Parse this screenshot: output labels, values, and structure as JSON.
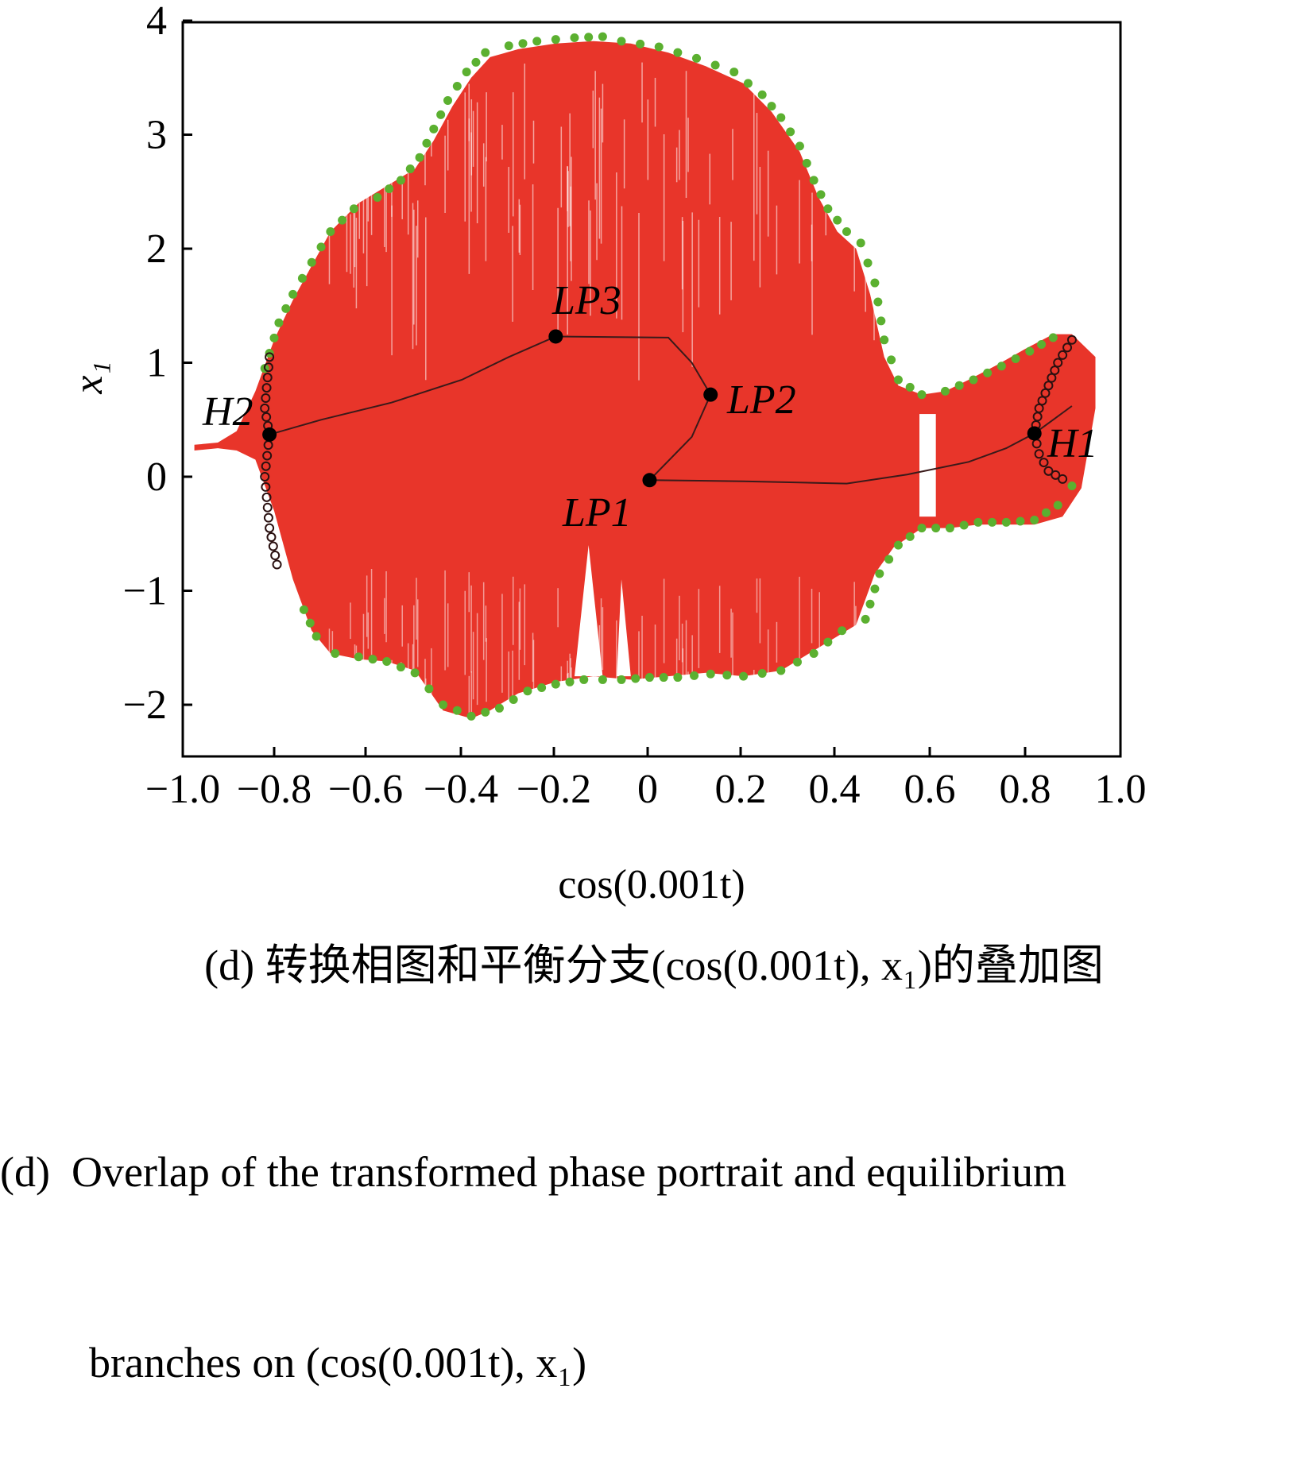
{
  "chart_data": {
    "type": "scatter",
    "xlabel": "cos(0.001t)",
    "ylabel": "x₁",
    "xlim": [
      -1.0,
      1.0
    ],
    "ylim": [
      -2.5,
      4.0
    ],
    "x_ticks": [
      "−1.0",
      "−0.8",
      "−0.6",
      "−0.4",
      "−0.2",
      "0",
      "0.2",
      "0.4",
      "0.6",
      "0.8",
      "1.0"
    ],
    "x_tick_values": [
      -1.0,
      -0.8,
      -0.6,
      -0.4,
      -0.2,
      0,
      0.2,
      0.4,
      0.6,
      0.8,
      1.0
    ],
    "y_ticks": [
      "−2",
      "−1",
      "0",
      "1",
      "2",
      "3",
      "4"
    ],
    "y_tick_values": [
      -2,
      -1,
      0,
      1,
      2,
      3,
      4
    ],
    "colors": {
      "phase_portrait": "#e8352a",
      "envelope": "#5bb030",
      "equilibrium_branch": "#3a1a1a",
      "points": "#000000",
      "hopf_circles": "#2a1010"
    },
    "phase_portrait_upper": [
      [
        -0.97,
        0.28
      ],
      [
        -0.92,
        0.3
      ],
      [
        -0.88,
        0.4
      ],
      [
        -0.84,
        0.75
      ],
      [
        -0.8,
        1.2
      ],
      [
        -0.76,
        1.55
      ],
      [
        -0.72,
        1.85
      ],
      [
        -0.68,
        2.15
      ],
      [
        -0.62,
        2.4
      ],
      [
        -0.56,
        2.55
      ],
      [
        -0.5,
        2.7
      ],
      [
        -0.46,
        2.95
      ],
      [
        -0.42,
        3.25
      ],
      [
        -0.38,
        3.5
      ],
      [
        -0.34,
        3.68
      ],
      [
        -0.28,
        3.75
      ],
      [
        -0.2,
        3.8
      ],
      [
        -0.12,
        3.82
      ],
      [
        -0.04,
        3.8
      ],
      [
        0.04,
        3.72
      ],
      [
        0.12,
        3.6
      ],
      [
        0.2,
        3.45
      ],
      [
        0.26,
        3.2
      ],
      [
        0.32,
        2.85
      ],
      [
        0.36,
        2.45
      ],
      [
        0.4,
        2.15
      ],
      [
        0.44,
        2.0
      ],
      [
        0.47,
        1.6
      ],
      [
        0.5,
        1.05
      ],
      [
        0.53,
        0.8
      ],
      [
        0.58,
        0.72
      ],
      [
        0.63,
        0.75
      ],
      [
        0.68,
        0.85
      ],
      [
        0.74,
        0.98
      ],
      [
        0.8,
        1.12
      ],
      [
        0.86,
        1.25
      ],
      [
        0.9,
        1.25
      ],
      [
        0.95,
        1.05
      ]
    ],
    "phase_portrait_lower": [
      [
        0.95,
        0.6
      ],
      [
        0.92,
        -0.1
      ],
      [
        0.88,
        -0.35
      ],
      [
        0.82,
        -0.42
      ],
      [
        0.76,
        -0.42
      ],
      [
        0.7,
        -0.42
      ],
      [
        0.64,
        -0.45
      ],
      [
        0.58,
        -0.45
      ],
      [
        0.52,
        -0.62
      ],
      [
        0.48,
        -0.85
      ],
      [
        0.44,
        -1.3
      ],
      [
        0.4,
        -1.4
      ],
      [
        0.34,
        -1.55
      ],
      [
        0.28,
        -1.7
      ],
      [
        0.2,
        -1.75
      ],
      [
        0.12,
        -1.72
      ],
      [
        0.04,
        -1.75
      ],
      [
        -0.04,
        -1.78
      ],
      [
        -0.12,
        -1.75
      ],
      [
        -0.2,
        -1.8
      ],
      [
        -0.28,
        -1.9
      ],
      [
        -0.34,
        -2.05
      ],
      [
        -0.38,
        -2.12
      ],
      [
        -0.44,
        -2.05
      ],
      [
        -0.5,
        -1.7
      ],
      [
        -0.56,
        -1.62
      ],
      [
        -0.62,
        -1.6
      ],
      [
        -0.68,
        -1.55
      ],
      [
        -0.72,
        -1.35
      ],
      [
        -0.76,
        -0.9
      ],
      [
        -0.8,
        -0.3
      ],
      [
        -0.84,
        0.15
      ],
      [
        -0.88,
        0.23
      ],
      [
        -0.92,
        0.25
      ],
      [
        -0.97,
        0.23
      ]
    ],
    "envelope_upper": [
      [
        -0.82,
        0.95
      ],
      [
        -0.79,
        1.35
      ],
      [
        -0.76,
        1.6
      ],
      [
        -0.72,
        1.88
      ],
      [
        -0.68,
        2.15
      ],
      [
        -0.63,
        2.35
      ],
      [
        -0.58,
        2.45
      ],
      [
        -0.53,
        2.6
      ],
      [
        -0.49,
        2.8
      ],
      [
        -0.46,
        3.05
      ],
      [
        -0.43,
        3.3
      ],
      [
        -0.39,
        3.55
      ],
      [
        -0.35,
        3.72
      ],
      [
        -0.3,
        3.78
      ],
      [
        -0.24,
        3.82
      ],
      [
        -0.16,
        3.85
      ],
      [
        -0.1,
        3.86
      ],
      [
        -0.06,
        3.82
      ],
      [
        0.02,
        3.77
      ],
      [
        0.1,
        3.67
      ],
      [
        0.18,
        3.55
      ],
      [
        0.24,
        3.35
      ],
      [
        0.28,
        3.15
      ],
      [
        0.32,
        2.9
      ],
      [
        0.35,
        2.6
      ],
      [
        0.38,
        2.35
      ],
      [
        0.42,
        2.15
      ],
      [
        0.45,
        2.05
      ],
      [
        0.48,
        1.7
      ],
      [
        0.5,
        1.2
      ],
      [
        0.53,
        0.85
      ],
      [
        0.58,
        0.72
      ],
      [
        0.63,
        0.75
      ],
      [
        0.69,
        0.85
      ],
      [
        0.75,
        0.97
      ],
      [
        0.81,
        1.1
      ],
      [
        0.86,
        1.22
      ],
      [
        0.89,
        1.28
      ]
    ],
    "envelope_lower": [
      [
        0.9,
        -0.08
      ],
      [
        0.87,
        -0.25
      ],
      [
        0.82,
        -0.38
      ],
      [
        0.76,
        -0.4
      ],
      [
        0.7,
        -0.4
      ],
      [
        0.64,
        -0.45
      ],
      [
        0.58,
        -0.45
      ],
      [
        0.53,
        -0.6
      ],
      [
        0.49,
        -0.85
      ],
      [
        0.46,
        -1.25
      ],
      [
        0.41,
        -1.35
      ],
      [
        0.35,
        -1.55
      ],
      [
        0.28,
        -1.7
      ],
      [
        0.2,
        -1.75
      ],
      [
        0.13,
        -1.73
      ],
      [
        0.06,
        -1.76
      ],
      [
        0.0,
        -1.76
      ],
      [
        -0.06,
        -1.78
      ],
      [
        -0.14,
        -1.78
      ],
      [
        -0.2,
        -1.82
      ],
      [
        -0.26,
        -1.88
      ],
      [
        -0.32,
        -2.03
      ],
      [
        -0.38,
        -2.1
      ],
      [
        -0.44,
        -2.0
      ],
      [
        -0.5,
        -1.72
      ],
      [
        -0.56,
        -1.62
      ],
      [
        -0.62,
        -1.58
      ],
      [
        -0.67,
        -1.55
      ],
      [
        -0.71,
        -1.4
      ],
      [
        -0.75,
        -1.05
      ]
    ],
    "equilibrium_branch": [
      [
        -0.81,
        0.37
      ],
      [
        -0.7,
        0.5
      ],
      [
        -0.55,
        0.65
      ],
      [
        -0.4,
        0.85
      ],
      [
        -0.3,
        1.05
      ],
      [
        -0.2,
        1.23
      ],
      [
        0.04,
        1.22
      ],
      [
        0.09,
        1.0
      ],
      [
        0.13,
        0.72
      ],
      [
        0.09,
        0.35
      ],
      [
        0.0,
        -0.03
      ],
      [
        0.2,
        -0.04
      ],
      [
        0.42,
        -0.06
      ],
      [
        0.55,
        0.02
      ],
      [
        0.68,
        0.13
      ],
      [
        0.76,
        0.25
      ],
      [
        0.82,
        0.38
      ],
      [
        0.86,
        0.5
      ],
      [
        0.9,
        0.62
      ]
    ],
    "hopf_curve_right": [
      [
        0.9,
        1.2
      ],
      [
        0.87,
        1.0
      ],
      [
        0.85,
        0.8
      ],
      [
        0.83,
        0.6
      ],
      [
        0.82,
        0.38
      ],
      [
        0.83,
        0.2
      ],
      [
        0.85,
        0.05
      ],
      [
        0.88,
        -0.02
      ],
      [
        0.9,
        -0.05
      ]
    ],
    "hopf_curve_left": [
      [
        -0.81,
        1.05
      ],
      [
        -0.82,
        0.6
      ],
      [
        -0.81,
        0.37
      ],
      [
        -0.82,
        0.0
      ],
      [
        -0.81,
        -0.45
      ],
      [
        -0.79,
        -0.85
      ]
    ],
    "special_points": [
      {
        "name": "H2",
        "x": -0.81,
        "y": 0.37
      },
      {
        "name": "LP3",
        "x": -0.2,
        "y": 1.23
      },
      {
        "name": "LP2",
        "x": 0.13,
        "y": 0.72
      },
      {
        "name": "LP1",
        "x": 0.0,
        "y": -0.03
      },
      {
        "name": "H1",
        "x": 0.82,
        "y": 0.38
      }
    ]
  },
  "labels": {
    "xlabel": "cos(0.001t)",
    "ylabel": "x₁",
    "H2": "H2",
    "LP3": "LP3",
    "LP2": "LP2",
    "LP1": "LP1",
    "H1": "H1"
  },
  "captions": {
    "chinese": "(d)  转换相图和平衡分支(cos(0.001t), x₁)的叠加图",
    "english_line1": "(d)  Overlap of the transformed phase portrait and equilibrium",
    "english_line2": "branches on (cos(0.001t), x₁)"
  }
}
